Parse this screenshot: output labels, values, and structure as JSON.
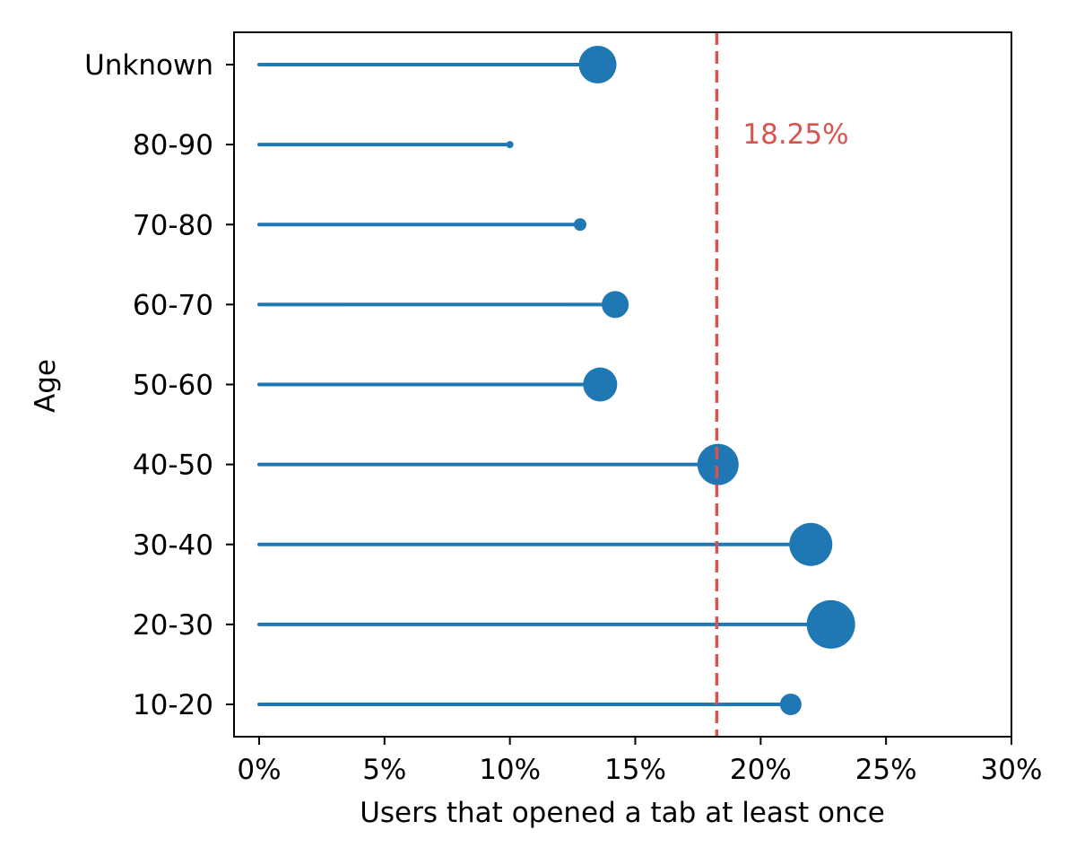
{
  "chart_data": {
    "type": "lollipop",
    "title": "",
    "xlabel": "Users that opened a tab at least once",
    "ylabel": "Age",
    "xlim": [
      -0.01,
      0.3
    ],
    "xticks": [
      0,
      0.05,
      0.1,
      0.15,
      0.2,
      0.25,
      0.3
    ],
    "xtick_labels": [
      "0%",
      "5%",
      "10%",
      "15%",
      "20%",
      "25%",
      "30%"
    ],
    "categories": [
      "10-20",
      "20-30",
      "30-40",
      "40-50",
      "50-60",
      "60-70",
      "70-80",
      "80-90",
      "Unknown"
    ],
    "values": [
      0.212,
      0.228,
      0.22,
      0.183,
      0.136,
      0.142,
      0.128,
      0.1,
      0.135
    ],
    "marker_size_rank": [
      3,
      9,
      8,
      7,
      5,
      4,
      2,
      1,
      6
    ],
    "reference_line": {
      "value": 0.1825,
      "label": "18.25%",
      "style": "dashed"
    },
    "colors": {
      "series": "#1f77b4",
      "reference": "#d9534f",
      "axis": "#000000"
    },
    "grid": false,
    "legend": "none"
  }
}
